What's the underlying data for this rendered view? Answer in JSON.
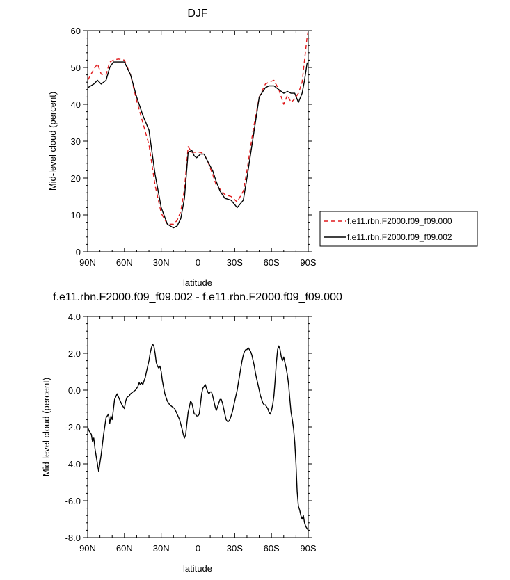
{
  "chart_data": [
    {
      "type": "line",
      "title": "DJF",
      "xlabel": "latitude",
      "ylabel": "Mid-level cloud (percent)",
      "xlim": [
        -90,
        90
      ],
      "ylim": [
        0,
        60
      ],
      "x_ticks": [
        {
          "value": -90,
          "label": "90N"
        },
        {
          "value": -60,
          "label": "60N"
        },
        {
          "value": -30,
          "label": "30N"
        },
        {
          "value": 0,
          "label": "0"
        },
        {
          "value": 30,
          "label": "30S"
        },
        {
          "value": 60,
          "label": "60S"
        },
        {
          "value": 90,
          "label": "90S"
        }
      ],
      "y_ticks": [
        {
          "value": 0,
          "label": "0"
        },
        {
          "value": 10,
          "label": "10"
        },
        {
          "value": 20,
          "label": "20"
        },
        {
          "value": 30,
          "label": "30"
        },
        {
          "value": 40,
          "label": "40"
        },
        {
          "value": 50,
          "label": "50"
        },
        {
          "value": 60,
          "label": "60"
        }
      ],
      "grid": false,
      "legend_position": "right",
      "series": [
        {
          "name": "f.e11.rbn.F2000.f09_f09.000",
          "color": "#e0191b",
          "dash": "dashed",
          "x": [
            -90,
            -85,
            -82,
            -79,
            -75,
            -72,
            -69,
            -65,
            -60,
            -55,
            -50,
            -45,
            -40,
            -35,
            -30,
            -25,
            -20,
            -17,
            -14,
            -11,
            -8,
            -5,
            -3,
            -1,
            2,
            5,
            8,
            12,
            15,
            18,
            22,
            27,
            32,
            37,
            40,
            45,
            50,
            55,
            58,
            62,
            66,
            70,
            73,
            76,
            79,
            82,
            85,
            87,
            89,
            90
          ],
          "values": [
            46.5,
            49.5,
            51.0,
            48.2,
            48.0,
            51.5,
            52.0,
            52.3,
            52.0,
            48.0,
            41.0,
            35.0,
            29.0,
            18.0,
            10.5,
            7.5,
            7.5,
            8.5,
            11.0,
            17.0,
            28.5,
            27.0,
            27.0,
            27.0,
            27.0,
            26.5,
            24.5,
            21.0,
            18.0,
            17.0,
            15.5,
            15.0,
            13.5,
            16.5,
            22.0,
            33.0,
            42.0,
            45.5,
            46.0,
            46.5,
            44.0,
            40.0,
            42.5,
            40.5,
            41.5,
            43.0,
            46.0,
            52.0,
            58.0,
            60.0
          ]
        },
        {
          "name": "f.e11.rbn.F2000.f09_f09.002",
          "color": "#000000",
          "dash": "solid",
          "x": [
            -90,
            -85,
            -82,
            -79,
            -75,
            -72,
            -69,
            -65,
            -60,
            -55,
            -50,
            -45,
            -40,
            -35,
            -30,
            -25,
            -20,
            -17,
            -14,
            -11,
            -8,
            -5,
            -3,
            -1,
            2,
            5,
            8,
            12,
            15,
            18,
            22,
            27,
            32,
            37,
            40,
            45,
            50,
            55,
            58,
            62,
            66,
            70,
            73,
            76,
            79,
            82,
            85,
            87,
            89,
            90
          ],
          "values": [
            44.5,
            45.5,
            46.5,
            45.5,
            46.5,
            50.0,
            51.5,
            51.5,
            51.5,
            48.0,
            42.0,
            37.0,
            33.0,
            21.0,
            12.0,
            7.5,
            6.5,
            7.0,
            9.0,
            14.5,
            27.0,
            27.5,
            26.0,
            25.5,
            26.5,
            26.5,
            24.5,
            22.0,
            19.0,
            16.5,
            14.5,
            14.0,
            12.0,
            14.0,
            20.0,
            31.0,
            42.0,
            44.5,
            45.0,
            45.0,
            44.0,
            43.0,
            43.5,
            43.0,
            43.0,
            40.5,
            43.0,
            46.5,
            51.0,
            51.5
          ]
        }
      ]
    },
    {
      "type": "line",
      "title": "f.e11.rbn.F2000.f09_f09.002 - f.e11.rbn.F2000.f09_f09.000",
      "xlabel": "latitude",
      "ylabel": "Mid-level cloud (percent)",
      "xlim": [
        -90,
        90
      ],
      "ylim": [
        -8,
        4
      ],
      "x_ticks": [
        {
          "value": -90,
          "label": "90N"
        },
        {
          "value": -60,
          "label": "60N"
        },
        {
          "value": -30,
          "label": "30N"
        },
        {
          "value": 0,
          "label": "0"
        },
        {
          "value": 30,
          "label": "30S"
        },
        {
          "value": 60,
          "label": "60S"
        },
        {
          "value": 90,
          "label": "90S"
        }
      ],
      "y_ticks": [
        {
          "value": -8,
          "label": "-8.0"
        },
        {
          "value": -6,
          "label": "-6.0"
        },
        {
          "value": -4,
          "label": "-4.0"
        },
        {
          "value": -2,
          "label": "-2.0"
        },
        {
          "value": 0,
          "label": "0.0"
        },
        {
          "value": 2,
          "label": "2.0"
        },
        {
          "value": 4,
          "label": "4.0"
        }
      ],
      "grid": false,
      "series": [
        {
          "color": "#000000",
          "dash": "solid",
          "x": [
            -90,
            -89,
            -87,
            -86,
            -85,
            -84,
            -83,
            -81,
            -79,
            -77,
            -75,
            -73,
            -72,
            -71,
            -70,
            -68,
            -66,
            -64,
            -62,
            -60,
            -59,
            -58,
            -56,
            -55,
            -53,
            -51,
            -49,
            -48,
            -47,
            -46,
            -45,
            -44,
            -43,
            -42,
            -41,
            -40,
            -39,
            -38,
            -37,
            -36,
            -35,
            -34,
            -33,
            -32,
            -31,
            -30,
            -29,
            -27,
            -25,
            -23,
            -21,
            -19,
            -17,
            -15,
            -13,
            -12,
            -11,
            -10,
            -9,
            -8,
            -7,
            -6,
            -5,
            -4,
            -3,
            -2,
            -1,
            0,
            1,
            2,
            3,
            4,
            5,
            6,
            7,
            8,
            9,
            10,
            11,
            12,
            13,
            14,
            15,
            16,
            17,
            18,
            19,
            20,
            21,
            22,
            23,
            24,
            25,
            26,
            27,
            28,
            29,
            30,
            31,
            32,
            33,
            34,
            35,
            36,
            37,
            38,
            39,
            40,
            41,
            42,
            43,
            44,
            45,
            46,
            47,
            48,
            49,
            50,
            51,
            52,
            53,
            54,
            55,
            56,
            57,
            58,
            59,
            60,
            61,
            62,
            63,
            64,
            65,
            66,
            67,
            68,
            69,
            70,
            71,
            72,
            73,
            74,
            75,
            76,
            77,
            78,
            79,
            80,
            81,
            82,
            83,
            84,
            85,
            86,
            87,
            88,
            89,
            90
          ],
          "values": [
            -2.0,
            -2.2,
            -2.4,
            -2.8,
            -2.6,
            -3.2,
            -3.6,
            -4.4,
            -3.5,
            -2.4,
            -1.5,
            -1.3,
            -1.8,
            -1.4,
            -1.6,
            -0.5,
            -0.2,
            -0.5,
            -0.8,
            -1.0,
            -0.6,
            -0.4,
            -0.3,
            -0.2,
            -0.1,
            0.0,
            0.2,
            0.4,
            0.3,
            0.4,
            0.3,
            0.5,
            0.7,
            1.0,
            1.3,
            1.6,
            2.0,
            2.3,
            2.5,
            2.4,
            2.0,
            1.5,
            1.3,
            1.2,
            1.3,
            1.0,
            0.5,
            -0.2,
            -0.6,
            -0.8,
            -0.9,
            -1.0,
            -1.3,
            -1.6,
            -2.1,
            -2.4,
            -2.6,
            -2.4,
            -1.8,
            -1.2,
            -0.9,
            -0.6,
            -0.7,
            -1.0,
            -1.3,
            -1.3,
            -1.4,
            -1.4,
            -1.3,
            -0.8,
            -0.2,
            0.1,
            0.2,
            0.3,
            0.1,
            -0.1,
            -0.2,
            -0.1,
            -0.1,
            -0.3,
            -0.6,
            -0.9,
            -1.1,
            -0.9,
            -0.7,
            -0.5,
            -0.5,
            -0.7,
            -1.0,
            -1.3,
            -1.6,
            -1.7,
            -1.7,
            -1.6,
            -1.4,
            -1.2,
            -0.9,
            -0.6,
            -0.3,
            0.0,
            0.4,
            0.8,
            1.2,
            1.6,
            1.9,
            2.1,
            2.2,
            2.2,
            2.3,
            2.2,
            2.1,
            1.9,
            1.6,
            1.3,
            0.9,
            0.6,
            0.3,
            0.0,
            -0.3,
            -0.5,
            -0.7,
            -0.8,
            -0.8,
            -0.9,
            -1.0,
            -1.2,
            -1.3,
            -1.1,
            -0.8,
            -0.3,
            0.5,
            1.5,
            2.2,
            2.4,
            2.2,
            1.8,
            1.6,
            1.8,
            1.5,
            1.2,
            0.8,
            0.3,
            -0.5,
            -1.2,
            -1.6,
            -2.1,
            -2.8,
            -4.0,
            -5.5,
            -6.3,
            -6.5,
            -6.8,
            -7.0,
            -6.8,
            -7.2,
            -7.4,
            -7.5,
            -7.6
          ]
        }
      ]
    }
  ]
}
